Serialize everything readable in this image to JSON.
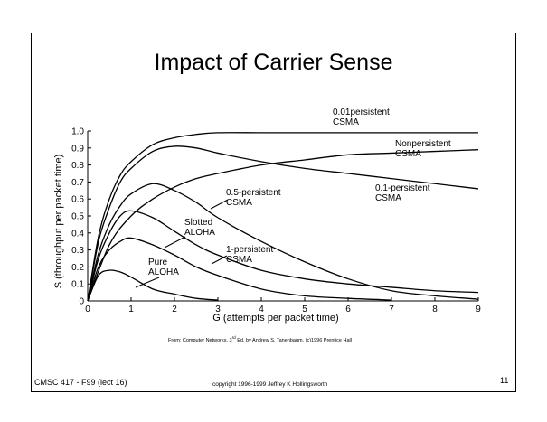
{
  "slide": {
    "title": "Impact of Carrier Sense",
    "source_prefix": "From: Computer Networks, 3",
    "source_sup": "rd",
    "source_suffix": " Ed. by Andrew S. Tanenbaum, (c)1996 Prentice Hall",
    "course": "CMSC 417 - F99  (lect 16)",
    "copyright": "copyright 1996-1999 Jeffrey K Hollingsworth",
    "page": "11"
  },
  "chart_data": {
    "type": "line",
    "xlabel": "G (attempts per packet time)",
    "ylabel": "S (throughput per packet time)",
    "xlim": [
      0,
      9
    ],
    "ylim": [
      0,
      1.0
    ],
    "xticks": [
      "0",
      "1",
      "2",
      "3",
      "4",
      "5",
      "6",
      "7",
      "8",
      "9"
    ],
    "yticks": [
      "0",
      "0.1",
      "0.2",
      "0.3",
      "0.4",
      "0.5",
      "0.6",
      "0.7",
      "0.8",
      "0.9",
      "1.0"
    ],
    "grid": false,
    "series": [
      {
        "name": "Pure ALOHA",
        "label_lines": [
          "Pure",
          "ALOHA"
        ],
        "x": [
          0,
          0.25,
          0.5,
          0.75,
          1,
          1.5,
          2,
          2.5,
          3
        ],
        "y": [
          0,
          0.15,
          0.18,
          0.17,
          0.14,
          0.07,
          0.04,
          0.015,
          0.005
        ]
      },
      {
        "name": "Slotted ALOHA",
        "label_lines": [
          "Slotted",
          "ALOHA"
        ],
        "x": [
          0,
          0.25,
          0.5,
          0.75,
          1,
          1.5,
          2,
          2.5,
          3,
          4,
          5,
          6,
          7
        ],
        "y": [
          0,
          0.2,
          0.3,
          0.35,
          0.37,
          0.33,
          0.27,
          0.2,
          0.15,
          0.07,
          0.03,
          0.015,
          0.005
        ]
      },
      {
        "name": "1-persistent CSMA",
        "label_lines": [
          "1-persistent",
          "CSMA"
        ],
        "x": [
          0,
          0.25,
          0.5,
          0.75,
          1,
          1.5,
          2,
          2.5,
          3,
          4,
          5,
          6,
          7,
          8,
          9
        ],
        "y": [
          0,
          0.25,
          0.4,
          0.5,
          0.53,
          0.49,
          0.41,
          0.33,
          0.27,
          0.18,
          0.13,
          0.1,
          0.08,
          0.06,
          0.05
        ]
      },
      {
        "name": "0.5-persistent CSMA",
        "label_lines": [
          "0.5-persistent",
          "CSMA"
        ],
        "x": [
          0,
          0.25,
          0.5,
          0.75,
          1,
          1.5,
          2,
          2.5,
          3,
          4,
          5,
          6,
          7,
          8,
          9
        ],
        "y": [
          0,
          0.28,
          0.45,
          0.56,
          0.63,
          0.69,
          0.65,
          0.58,
          0.49,
          0.35,
          0.23,
          0.13,
          0.06,
          0.03,
          0.01
        ]
      },
      {
        "name": "0.1-persistent CSMA",
        "label_lines": [
          "0.1-persistent",
          "CSMA"
        ],
        "x": [
          0,
          0.25,
          0.5,
          0.75,
          1,
          1.5,
          2,
          2.5,
          3,
          4,
          5,
          6,
          7,
          8,
          9
        ],
        "y": [
          0,
          0.35,
          0.55,
          0.7,
          0.78,
          0.88,
          0.91,
          0.9,
          0.87,
          0.82,
          0.78,
          0.75,
          0.72,
          0.69,
          0.66
        ]
      },
      {
        "name": "Nonpersistent CSMA",
        "label_lines": [
          "Nonpersistent",
          "CSMA"
        ],
        "x": [
          0,
          0.5,
          1,
          1.5,
          2,
          2.5,
          3,
          4,
          5,
          6,
          7,
          8,
          9
        ],
        "y": [
          0,
          0.33,
          0.5,
          0.6,
          0.67,
          0.72,
          0.75,
          0.8,
          0.83,
          0.86,
          0.87,
          0.88,
          0.89
        ]
      },
      {
        "name": "0.01 persistent CSMA",
        "label_lines": [
          "0.01persistent",
          "CSMA"
        ],
        "x": [
          0,
          0.25,
          0.5,
          0.75,
          1,
          1.5,
          2,
          2.5,
          3,
          4,
          5,
          6,
          7,
          8,
          9
        ],
        "y": [
          0,
          0.38,
          0.6,
          0.74,
          0.82,
          0.92,
          0.96,
          0.98,
          0.99,
          0.99,
          0.99,
          0.99,
          0.99,
          0.99,
          0.99
        ]
      }
    ]
  }
}
